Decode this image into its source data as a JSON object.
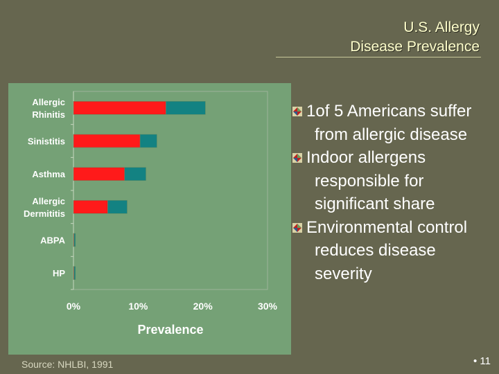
{
  "slide": {
    "title_line1": "U.S. Allergy",
    "title_line2": "Disease Prevalence",
    "source": "Source:  NHLBI, 1991",
    "page_number": "• 11"
  },
  "bullets": [
    {
      "text": "1of 5 Americans suffer from allergic disease",
      "icon": "diamond-bullet-icon"
    },
    {
      "text": "Indoor allergens responsible for significant share",
      "icon": "diamond-bullet-icon"
    },
    {
      "text": "Environmental control reduces disease severity",
      "icon": "diamond-bullet-icon"
    }
  ],
  "colors": {
    "background": "#66664f",
    "chart_panel": "#75a176",
    "series_red": "#ff1a1a",
    "series_teal": "#138282",
    "title": "#ffffcc"
  },
  "chart_data": {
    "type": "bar",
    "orientation": "horizontal",
    "stacked": true,
    "categories": [
      "Allergic\nRhinitis",
      "Sinistitis",
      "Asthma",
      "Allergic\nDermititis",
      "ABPA",
      "HP"
    ],
    "series": [
      {
        "values": [
          14.3,
          10.3,
          7.9,
          5.3,
          0.1,
          0.1
        ]
      },
      {
        "values": [
          6.1,
          2.6,
          3.3,
          3.0,
          0.2,
          0.2
        ]
      }
    ],
    "xlabel": "Prevalence",
    "ylabel": "",
    "xlim": [
      0,
      30
    ],
    "xticks": [
      "0%",
      "10%",
      "20%",
      "30%"
    ],
    "grid": false,
    "legend": "none"
  }
}
